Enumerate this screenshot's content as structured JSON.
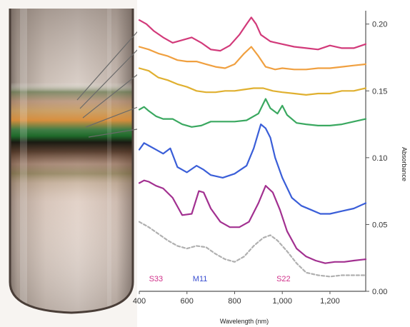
{
  "chart_data": {
    "type": "line",
    "title": "",
    "xlabel": "Wavelength (nm)",
    "ylabel": "Absorbance",
    "xlim": [
      400,
      1350
    ],
    "ylim": [
      0,
      0.21
    ],
    "y_axis_side": "right",
    "grid": false,
    "legend": "none",
    "x_tick_labels": [
      "400",
      "600",
      "800",
      "1,000",
      "1,200"
    ],
    "x_ticks": [
      400,
      600,
      800,
      1000,
      1200
    ],
    "y_tick_labels": [
      "0.00",
      "0.05",
      "0.10",
      "0.15",
      "0.20"
    ],
    "y_ticks": [
      0,
      0.05,
      0.1,
      0.15,
      0.2
    ],
    "annotations": [
      {
        "text": "S33",
        "x": 470,
        "color": "#d0308a"
      },
      {
        "text": "M11",
        "x": 655,
        "color": "#3a4fd0"
      },
      {
        "text": "S22",
        "x": 1005,
        "color": "#d0308a"
      }
    ],
    "series": [
      {
        "color": "#d23a7a",
        "dashed": false,
        "x": [
          400,
          430,
          460,
          500,
          540,
          580,
          620,
          660,
          700,
          740,
          780,
          820,
          850,
          870,
          890,
          910,
          950,
          1000,
          1050,
          1100,
          1150,
          1200,
          1250,
          1300,
          1350
        ],
        "y": [
          0.203,
          0.2,
          0.195,
          0.19,
          0.186,
          0.188,
          0.19,
          0.186,
          0.181,
          0.18,
          0.184,
          0.192,
          0.2,
          0.205,
          0.2,
          0.192,
          0.187,
          0.185,
          0.183,
          0.182,
          0.181,
          0.184,
          0.182,
          0.182,
          0.185
        ]
      },
      {
        "color": "#f0a040",
        "dashed": false,
        "x": [
          400,
          440,
          480,
          520,
          560,
          600,
          640,
          680,
          720,
          760,
          800,
          840,
          870,
          900,
          930,
          970,
          1000,
          1050,
          1100,
          1150,
          1200,
          1250,
          1300,
          1350
        ],
        "y": [
          0.183,
          0.181,
          0.178,
          0.176,
          0.173,
          0.172,
          0.172,
          0.17,
          0.168,
          0.167,
          0.17,
          0.178,
          0.183,
          0.176,
          0.168,
          0.166,
          0.167,
          0.166,
          0.166,
          0.167,
          0.167,
          0.168,
          0.169,
          0.17
        ]
      },
      {
        "color": "#e0b030",
        "dashed": false,
        "x": [
          400,
          440,
          480,
          520,
          560,
          600,
          640,
          680,
          720,
          760,
          800,
          840,
          880,
          920,
          960,
          1000,
          1050,
          1100,
          1150,
          1200,
          1250,
          1300,
          1350
        ],
        "y": [
          0.167,
          0.165,
          0.16,
          0.158,
          0.155,
          0.153,
          0.15,
          0.149,
          0.149,
          0.15,
          0.15,
          0.151,
          0.152,
          0.152,
          0.15,
          0.149,
          0.148,
          0.147,
          0.148,
          0.148,
          0.15,
          0.15,
          0.152
        ]
      },
      {
        "color": "#3aa860",
        "dashed": false,
        "x": [
          400,
          420,
          440,
          470,
          500,
          540,
          580,
          620,
          660,
          700,
          750,
          800,
          850,
          900,
          930,
          950,
          980,
          1000,
          1020,
          1060,
          1100,
          1150,
          1200,
          1250,
          1300,
          1350
        ],
        "y": [
          0.136,
          0.138,
          0.135,
          0.131,
          0.129,
          0.129,
          0.125,
          0.123,
          0.124,
          0.127,
          0.127,
          0.127,
          0.128,
          0.133,
          0.144,
          0.137,
          0.133,
          0.139,
          0.132,
          0.126,
          0.125,
          0.124,
          0.124,
          0.125,
          0.127,
          0.129
        ]
      },
      {
        "color": "#3a5ed8",
        "dashed": false,
        "x": [
          400,
          420,
          440,
          470,
          500,
          530,
          560,
          600,
          640,
          670,
          700,
          750,
          800,
          850,
          880,
          910,
          930,
          950,
          970,
          1000,
          1040,
          1080,
          1120,
          1160,
          1200,
          1250,
          1300,
          1350
        ],
        "y": [
          0.106,
          0.111,
          0.109,
          0.106,
          0.103,
          0.107,
          0.093,
          0.089,
          0.094,
          0.091,
          0.087,
          0.085,
          0.088,
          0.094,
          0.107,
          0.125,
          0.122,
          0.115,
          0.1,
          0.085,
          0.07,
          0.064,
          0.061,
          0.058,
          0.058,
          0.06,
          0.062,
          0.066
        ]
      },
      {
        "color": "#a23090",
        "dashed": false,
        "x": [
          400,
          420,
          440,
          470,
          500,
          540,
          580,
          620,
          650,
          670,
          700,
          740,
          780,
          820,
          860,
          900,
          930,
          960,
          990,
          1020,
          1060,
          1100,
          1140,
          1180,
          1220,
          1260,
          1300,
          1350
        ],
        "y": [
          0.081,
          0.083,
          0.082,
          0.079,
          0.077,
          0.07,
          0.057,
          0.058,
          0.075,
          0.074,
          0.062,
          0.052,
          0.048,
          0.048,
          0.052,
          0.066,
          0.079,
          0.074,
          0.061,
          0.045,
          0.032,
          0.026,
          0.023,
          0.021,
          0.022,
          0.022,
          0.023,
          0.024
        ]
      },
      {
        "color": "#b0b0b0",
        "dashed": true,
        "x": [
          400,
          440,
          480,
          520,
          560,
          600,
          640,
          680,
          720,
          760,
          800,
          840,
          880,
          920,
          950,
          980,
          1020,
          1060,
          1100,
          1150,
          1200,
          1250,
          1300,
          1350
        ],
        "y": [
          0.052,
          0.048,
          0.043,
          0.038,
          0.034,
          0.032,
          0.034,
          0.033,
          0.028,
          0.024,
          0.022,
          0.026,
          0.034,
          0.04,
          0.042,
          0.038,
          0.03,
          0.021,
          0.014,
          0.012,
          0.011,
          0.012,
          0.012,
          0.012
        ]
      }
    ]
  }
}
